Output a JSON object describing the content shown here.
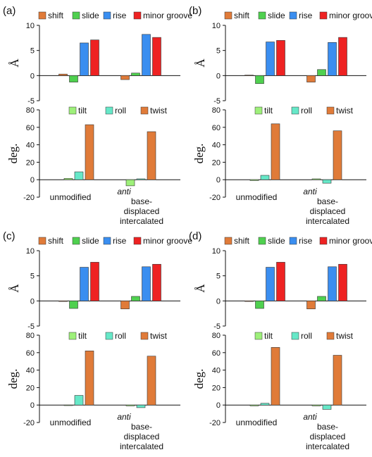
{
  "panels": [
    {
      "label": "(a)",
      "chart_data": [
        {
          "type": "bar",
          "ylabel": "Å",
          "ylim": [
            -5,
            10
          ],
          "yticks": [
            "10",
            "5",
            "0",
            "-5"
          ],
          "categories": [
            "unmodified",
            "anti base-displaced intercalated"
          ],
          "series": [
            {
              "name": "shift",
              "color": "#E07B39",
              "values": [
                0.3,
                -0.8
              ]
            },
            {
              "name": "slide",
              "color": "#4FD04F",
              "values": [
                -1.3,
                0.5
              ]
            },
            {
              "name": "rise",
              "color": "#3A8EF0",
              "values": [
                6.5,
                8.2
              ]
            },
            {
              "name": "minor groove",
              "color": "#EE2222",
              "values": [
                7.1,
                7.6
              ]
            }
          ]
        },
        {
          "type": "bar",
          "ylabel": "deg.",
          "ylim": [
            -20,
            80
          ],
          "yticks": [
            "80",
            "60",
            "40",
            "20",
            "0",
            "-20"
          ],
          "categories": [
            "unmodified",
            "anti base-displaced intercalated"
          ],
          "series": [
            {
              "name": "tilt",
              "color": "#9EF07A",
              "values": [
                1.5,
                -7
              ]
            },
            {
              "name": "roll",
              "color": "#66E8C8",
              "values": [
                9,
                1
              ]
            },
            {
              "name": "twist",
              "color": "#E07B39",
              "values": [
                63,
                55
              ]
            }
          ]
        }
      ]
    },
    {
      "label": "(b)",
      "chart_data": [
        {
          "type": "bar",
          "ylabel": "Å",
          "ylim": [
            -5,
            10
          ],
          "yticks": [
            "10",
            "5",
            "0",
            "-5"
          ],
          "categories": [
            "unmodified",
            "anti base-displaced intercalated"
          ],
          "series": [
            {
              "name": "shift",
              "color": "#E07B39",
              "values": [
                0.1,
                -1.3
              ]
            },
            {
              "name": "slide",
              "color": "#4FD04F",
              "values": [
                -1.6,
                1.2
              ]
            },
            {
              "name": "rise",
              "color": "#3A8EF0",
              "values": [
                6.7,
                6.6
              ]
            },
            {
              "name": "minor groove",
              "color": "#EE2222",
              "values": [
                7.0,
                7.6
              ]
            }
          ]
        },
        {
          "type": "bar",
          "ylabel": "deg.",
          "ylim": [
            -20,
            80
          ],
          "yticks": [
            "80",
            "60",
            "40",
            "20",
            "0",
            "-20"
          ],
          "categories": [
            "unmodified",
            "anti base-displaced intercalated"
          ],
          "series": [
            {
              "name": "tilt",
              "color": "#9EF07A",
              "values": [
                -1,
                1
              ]
            },
            {
              "name": "roll",
              "color": "#66E8C8",
              "values": [
                5,
                -4
              ]
            },
            {
              "name": "twist",
              "color": "#E07B39",
              "values": [
                64,
                56
              ]
            }
          ]
        }
      ]
    },
    {
      "label": "(c)",
      "chart_data": [
        {
          "type": "bar",
          "ylabel": "Å",
          "ylim": [
            -5,
            10
          ],
          "yticks": [
            "10",
            "5",
            "0",
            "-5"
          ],
          "categories": [
            "unmodified",
            "anti base-displaced intercalated"
          ],
          "series": [
            {
              "name": "shift",
              "color": "#E07B39",
              "values": [
                0,
                -1.6
              ]
            },
            {
              "name": "slide",
              "color": "#4FD04F",
              "values": [
                -1.5,
                0.9
              ]
            },
            {
              "name": "rise",
              "color": "#3A8EF0",
              "values": [
                6.7,
                6.8
              ]
            },
            {
              "name": "minor groove",
              "color": "#EE2222",
              "values": [
                7.7,
                7.3
              ]
            }
          ]
        },
        {
          "type": "bar",
          "ylabel": "deg.",
          "ylim": [
            -20,
            80
          ],
          "yticks": [
            "80",
            "60",
            "40",
            "20",
            "0",
            "-20"
          ],
          "categories": [
            "unmodified",
            "anti base-displaced intercalated"
          ],
          "series": [
            {
              "name": "tilt",
              "color": "#9EF07A",
              "values": [
                0,
                -1
              ]
            },
            {
              "name": "roll",
              "color": "#66E8C8",
              "values": [
                11,
                -3
              ]
            },
            {
              "name": "twist",
              "color": "#E07B39",
              "values": [
                62,
                56
              ]
            }
          ]
        }
      ]
    },
    {
      "label": "(d)",
      "chart_data": [
        {
          "type": "bar",
          "ylabel": "Å",
          "ylim": [
            -5,
            10
          ],
          "yticks": [
            "10",
            "5",
            "0",
            "-5"
          ],
          "categories": [
            "unmodified",
            "anti base-displaced intercalated"
          ],
          "series": [
            {
              "name": "shift",
              "color": "#E07B39",
              "values": [
                0,
                -1.6
              ]
            },
            {
              "name": "slide",
              "color": "#4FD04F",
              "values": [
                -1.5,
                0.9
              ]
            },
            {
              "name": "rise",
              "color": "#3A8EF0",
              "values": [
                6.7,
                6.8
              ]
            },
            {
              "name": "minor groove",
              "color": "#EE2222",
              "values": [
                7.7,
                7.3
              ]
            }
          ]
        },
        {
          "type": "bar",
          "ylabel": "deg.",
          "ylim": [
            -20,
            80
          ],
          "yticks": [
            "80",
            "60",
            "40",
            "20",
            "0",
            "-20"
          ],
          "categories": [
            "unmodified",
            "anti base-displaced intercalated"
          ],
          "series": [
            {
              "name": "tilt",
              "color": "#9EF07A",
              "values": [
                -1,
                -1
              ]
            },
            {
              "name": "roll",
              "color": "#66E8C8",
              "values": [
                2,
                -5
              ]
            },
            {
              "name": "twist",
              "color": "#E07B39",
              "values": [
                66,
                57
              ]
            }
          ]
        }
      ]
    }
  ],
  "category_text": {
    "unmodified": "unmodified",
    "anti": "anti",
    "line2": "base-",
    "line3": "displaced",
    "line4": "intercalated"
  }
}
